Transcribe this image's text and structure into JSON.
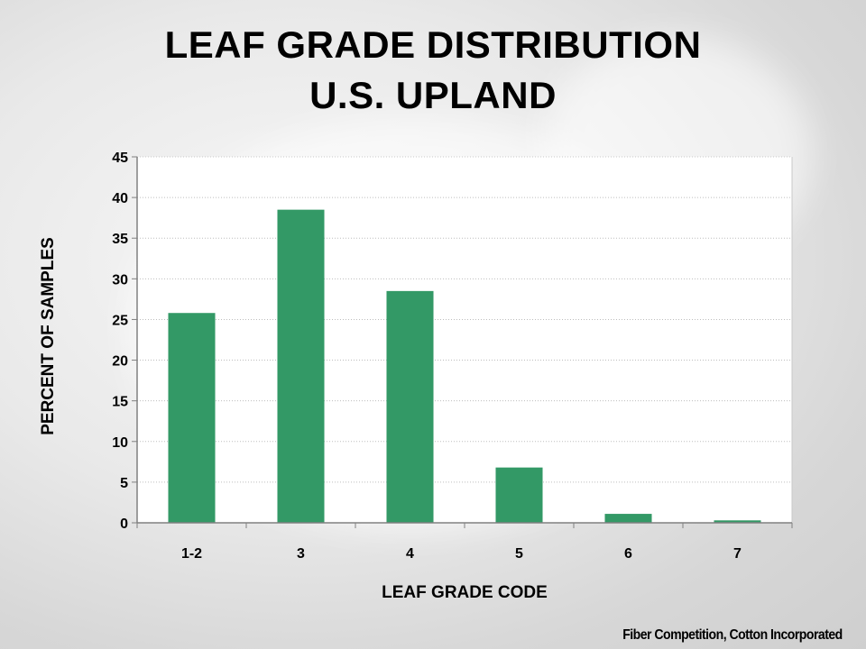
{
  "title_lines": [
    "LEAF GRADE DISTRIBUTION",
    "U.S. UPLAND"
  ],
  "source": "Fiber Competition, Cotton Incorporated",
  "colors": {
    "bar": "#339966",
    "gridline": "#bdbdbd",
    "axis": "#808080",
    "plot_bg": "#ffffff"
  },
  "chart_data": {
    "type": "bar",
    "title": "LEAF GRADE DISTRIBUTION U.S. UPLAND",
    "categories": [
      "1-2",
      "3",
      "4",
      "5",
      "6",
      "7"
    ],
    "values": [
      25.8,
      38.5,
      28.5,
      6.8,
      1.1,
      0.3
    ],
    "xlabel": "LEAF GRADE CODE",
    "ylabel": "PERCENT OF SAMPLES",
    "ylim": [
      0,
      45
    ],
    "yticks": [
      0,
      5,
      10,
      15,
      20,
      25,
      30,
      35,
      40,
      45
    ],
    "grid": true
  }
}
